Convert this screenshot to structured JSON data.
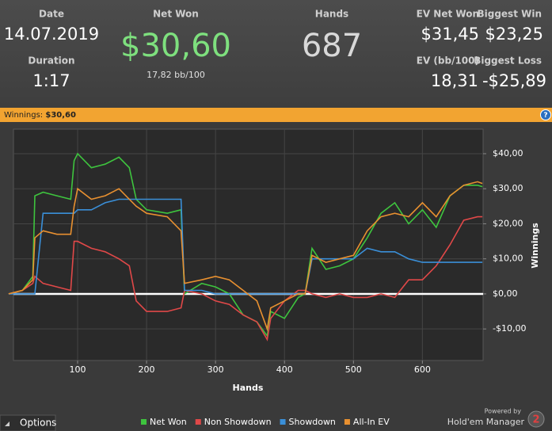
{
  "header": {
    "stats": [
      {
        "label": "Date",
        "value": "14.07.2019"
      },
      {
        "label": "Duration",
        "value": "1:17"
      },
      {
        "label": "Net Won",
        "value": "$30,60"
      },
      {
        "label": "Hands",
        "value": "687"
      },
      {
        "label": "EV Net Won",
        "value": "$31,45"
      },
      {
        "label": "Biggest Win",
        "value": "$23,25"
      },
      {
        "label": "EV (bb/100)",
        "value": "18,31"
      },
      {
        "label": "Biggest Loss",
        "value": "-$25,89"
      }
    ],
    "net_won_sub": "17,82 bb/100"
  },
  "winnings_bar": {
    "label": "Winnings:",
    "value": "$30,60",
    "help": "?"
  },
  "footer": {
    "options": "Options",
    "powered_by": "Powered by",
    "brand": "Hold'em Manager",
    "logo_number": "2"
  },
  "chart_data": {
    "type": "line",
    "x": [
      0,
      20,
      35,
      38,
      50,
      70,
      90,
      95,
      100,
      120,
      140,
      160,
      175,
      185,
      200,
      230,
      250,
      255,
      280,
      300,
      320,
      340,
      360,
      375,
      380,
      400,
      420,
      430,
      440,
      460,
      480,
      500,
      520,
      540,
      560,
      580,
      600,
      620,
      640,
      660,
      680,
      687
    ],
    "series": [
      {
        "name": "Net Won",
        "color": "#3ec43e",
        "values": [
          0,
          1,
          5,
          28,
          29,
          28,
          27,
          38,
          40,
          36,
          37,
          39,
          36,
          27,
          24,
          23,
          24,
          0,
          3,
          2,
          0,
          -6,
          -8,
          -12,
          -5,
          -7,
          -1,
          0,
          13,
          7,
          8,
          10,
          16,
          23,
          26,
          20,
          24,
          19,
          28,
          31,
          31,
          30.6
        ]
      },
      {
        "name": "Non Showdown",
        "color": "#e04848",
        "values": [
          0,
          1,
          3,
          5,
          3,
          2,
          1,
          15,
          15,
          13,
          12,
          10,
          8,
          -2,
          -5,
          -5,
          -4,
          1,
          0,
          -2,
          -3,
          -6,
          -8,
          -13,
          -7,
          -2,
          1,
          1,
          0,
          -1,
          0,
          -1,
          -1,
          0,
          -1,
          4,
          4,
          8,
          14,
          21,
          22,
          22
        ]
      },
      {
        "name": "Showdown",
        "color": "#3a8fd8",
        "values": [
          0,
          0,
          0,
          0,
          23,
          23,
          23,
          23,
          24,
          24,
          26,
          27,
          27,
          27,
          27,
          27,
          27,
          1,
          1,
          0,
          0,
          0,
          0,
          0,
          0,
          0,
          0,
          0,
          10,
          10,
          10,
          10,
          13,
          12,
          12,
          10,
          9,
          9,
          9,
          9,
          9,
          9
        ]
      },
      {
        "name": "All-In EV",
        "color": "#e89030",
        "values": [
          0,
          1,
          4,
          16,
          18,
          17,
          17,
          25,
          30,
          27,
          28,
          30,
          27,
          25,
          23,
          22,
          18,
          3,
          4,
          5,
          4,
          1,
          -2,
          -10,
          -4,
          -2,
          0,
          0,
          11,
          9,
          10,
          11,
          18,
          22,
          23,
          22,
          26,
          22,
          28,
          31,
          32,
          31.5
        ]
      }
    ],
    "xlim": [
      7,
      688
    ],
    "ylim": [
      -19,
      47
    ],
    "xticks": [
      100,
      200,
      300,
      400,
      500,
      600
    ],
    "yticks": [
      {
        "value": 40,
        "label": "$40,00"
      },
      {
        "value": 30,
        "label": "$30,00"
      },
      {
        "value": 20,
        "label": "$20,00"
      },
      {
        "value": 10,
        "label": "$10,00"
      },
      {
        "value": 0,
        "label": "$0,00"
      },
      {
        "value": -10,
        "label": "-$10,00"
      }
    ],
    "xlabel": "Hands",
    "ylabel": "Winnings",
    "grid": true
  }
}
